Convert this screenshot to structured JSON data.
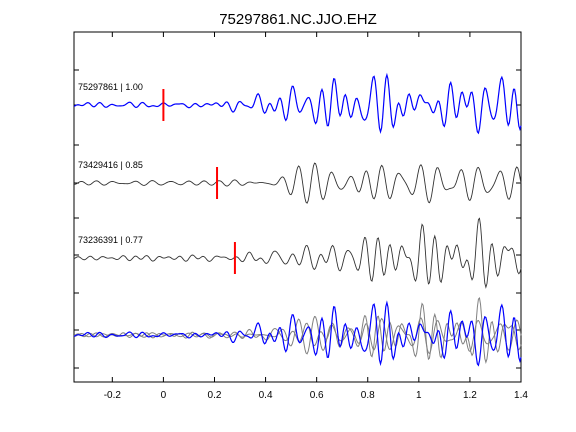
{
  "chart_data": {
    "type": "line",
    "title": "75297861.NC.JJO.EHZ",
    "xlim": [
      -0.35,
      1.4
    ],
    "x_ticks": [
      -0.2,
      0,
      0.2,
      0.4,
      0.6,
      0.8,
      1,
      1.2,
      1.4
    ],
    "x_tick_labels": [
      "-0.2",
      "0",
      "0.2",
      "0.4",
      "0.6",
      "0.8",
      "1",
      "1.2",
      "1.4"
    ],
    "xlabel": "",
    "ylabel": "",
    "grid": false,
    "colors": {
      "primary": "#0000ff",
      "secondary": "#333333",
      "overlay_gray": "#808080",
      "pick": "#ff0000"
    },
    "traces": [
      {
        "label": "75297861 | 1.00",
        "color": "#0000ff",
        "pick_time": 0.0,
        "onset": 0.16,
        "amplitude": 1.0,
        "phase_seed": 1
      },
      {
        "label": "73429416 | 0.85",
        "color": "#333333",
        "pick_time": 0.21,
        "onset": 0.22,
        "amplitude": 1.0,
        "phase_seed": 2
      },
      {
        "label": "73236391 | 0.77",
        "color": "#333333",
        "pick_time": 0.28,
        "onset": 0.28,
        "amplitude": 1.0,
        "phase_seed": 3
      }
    ],
    "overlay": {
      "series": [
        {
          "name": "",
          "color": "#808080",
          "seed": 2,
          "shift": 0.0
        },
        {
          "name": "",
          "color": "#808080",
          "seed": 3,
          "shift": 0.0
        },
        {
          "name": "",
          "color": "#0000ff",
          "seed": 1,
          "shift": 0.0
        }
      ]
    }
  }
}
